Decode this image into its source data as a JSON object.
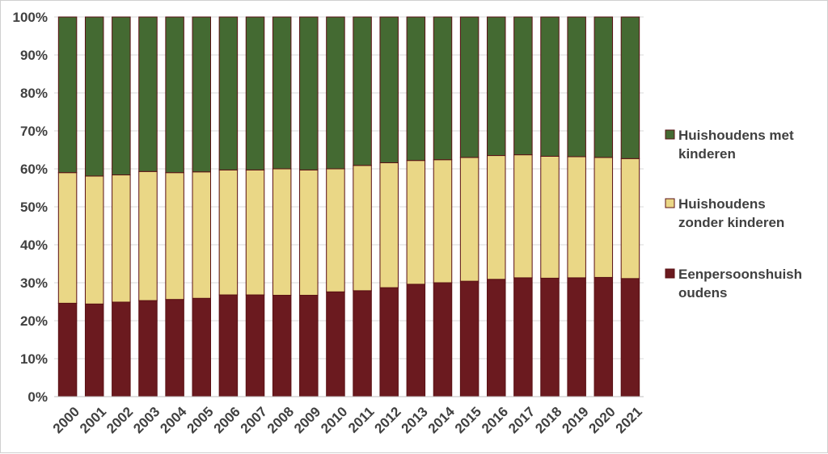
{
  "chart_data": {
    "type": "bar",
    "stacked": true,
    "percent_stacked": true,
    "categories": [
      "2000",
      "2001",
      "2002",
      "2003",
      "2004",
      "2005",
      "2006",
      "2007",
      "2008",
      "2009",
      "2010",
      "2011",
      "2012",
      "2013",
      "2014",
      "2015",
      "2016",
      "2017",
      "2018",
      "2019",
      "2020",
      "2021"
    ],
    "series": [
      {
        "name": "Eenpersoonshuishoudens",
        "color": "#6b1a1f",
        "values": [
          24.6,
          24.4,
          24.9,
          25.3,
          25.6,
          25.9,
          26.8,
          26.8,
          26.7,
          26.7,
          27.6,
          27.9,
          28.7,
          29.6,
          30.0,
          30.4,
          30.9,
          31.3,
          31.2,
          31.3,
          31.4,
          31.1
        ]
      },
      {
        "name": "Huishoudens zonder kinderen",
        "color": "#ead786",
        "values": [
          34.4,
          33.7,
          33.5,
          34.0,
          33.4,
          33.3,
          32.9,
          32.9,
          33.3,
          33.0,
          32.4,
          33.0,
          32.9,
          32.6,
          32.4,
          32.6,
          32.6,
          32.4,
          32.1,
          31.9,
          31.6,
          31.6
        ]
      },
      {
        "name": "Huishoudens met kinderen",
        "color": "#446a32",
        "values": [
          41.0,
          41.9,
          41.6,
          40.7,
          41.0,
          40.8,
          40.3,
          40.3,
          40.0,
          40.3,
          40.0,
          39.1,
          38.4,
          37.8,
          37.6,
          37.0,
          36.5,
          36.3,
          36.7,
          36.8,
          37.0,
          37.3
        ]
      }
    ],
    "ylim": [
      0,
      100
    ],
    "y_ticks": [
      "0%",
      "10%",
      "20%",
      "30%",
      "40%",
      "50%",
      "60%",
      "70%",
      "80%",
      "90%",
      "100%"
    ],
    "grid": true,
    "legend_position": "right",
    "legend": [
      {
        "lines": [
          "Huishoudens met",
          "kinderen"
        ],
        "color": "#446a32"
      },
      {
        "lines": [
          "Huishoudens",
          "zonder kinderen"
        ],
        "color": "#ead786"
      },
      {
        "lines": [
          "Eenpersoonshuish",
          "oudens"
        ],
        "color": "#6b1a1f"
      }
    ],
    "bar_edge_color": "#5a1014",
    "grid_color": "#d9d9d9",
    "axis_color": "#bfbfbf"
  }
}
